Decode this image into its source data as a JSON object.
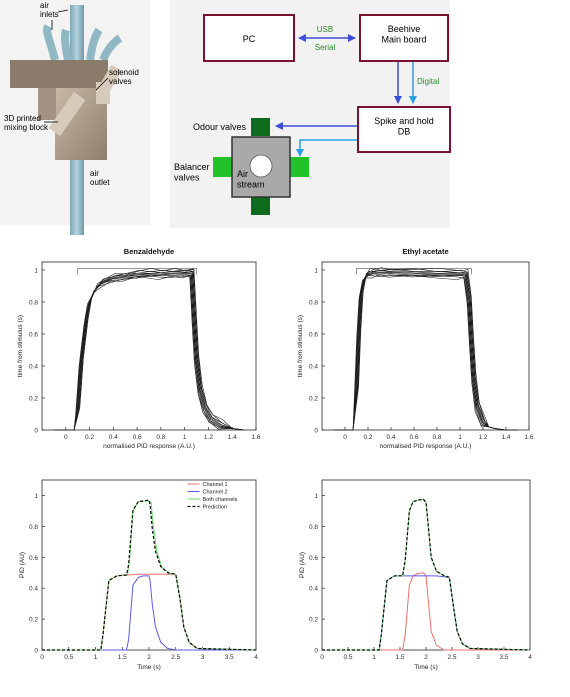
{
  "render3d": {
    "labels": {
      "air_inlets": "air\ninlets",
      "solenoid_valves": "solenoid\nvalves",
      "mixing_block": "3D printed\nmixing block",
      "air_outlet": "air\noutlet"
    }
  },
  "schematic": {
    "pc": "PC",
    "beehive": "Beehive\nMain board",
    "spike": "Spike and hold\nDB",
    "usb": "USB",
    "serial": "Serial",
    "digital": "Digital",
    "odour_valves": "Odour valves",
    "balancer_valves": "Balancer\nvalves",
    "air_stream": "Air\nstream",
    "colors": {
      "box_border": "#7b1330",
      "arrow_dark": "#3b4ed8",
      "arrow_light": "#2aa0e6",
      "label_green": "#2c8a2c",
      "odour_valve": "#0d6b1d",
      "balancer_valve": "#22c32a",
      "plate": "#a9a9a9"
    }
  },
  "chart_data": [
    {
      "type": "line",
      "title": "Benzaldehyde",
      "xlabel": "normalised PID response (A.U.)",
      "ylabel": "time from stimulus (s)",
      "xlim": [
        -0.2,
        1.6
      ],
      "ylim": [
        0,
        1.05
      ],
      "xticks": [
        "0",
        "0.2",
        "0.4",
        "0.6",
        "0.8",
        "1",
        "1.2",
        "1.4",
        "1.6"
      ],
      "yticks": [
        "0",
        "0.2",
        "0.4",
        "0.6",
        "0.8",
        "1"
      ],
      "bracket": {
        "x_start": 0.1,
        "x_end": 1.1,
        "y": 1.01
      },
      "traces": 10,
      "series": [
        {
          "x": [
            -0.1,
            0.07,
            0.1,
            0.13,
            0.17,
            0.2,
            0.25,
            0.3,
            0.4,
            0.5,
            0.6,
            0.7,
            0.8,
            0.9,
            1.0,
            1.06,
            1.08,
            1.1,
            1.13,
            1.17,
            1.22,
            1.3,
            1.4,
            1.5
          ],
          "y": [
            0,
            0,
            0.12,
            0.42,
            0.68,
            0.8,
            0.88,
            0.92,
            0.95,
            0.96,
            0.97,
            0.975,
            0.975,
            0.98,
            0.98,
            0.98,
            0.7,
            0.45,
            0.25,
            0.14,
            0.07,
            0.03,
            0.01,
            0.0
          ]
        }
      ]
    },
    {
      "type": "line",
      "title": "Ethyl acetate",
      "xlabel": "normalised PID response (A.U.)",
      "ylabel": "time from stimulus (s)",
      "xlim": [
        -0.2,
        1.6
      ],
      "ylim": [
        0,
        1.05
      ],
      "xticks": [
        "0",
        "0.2",
        "0.4",
        "0.6",
        "0.8",
        "1",
        "1.2",
        "1.4",
        "1.6"
      ],
      "yticks": [
        "0",
        "0.2",
        "0.4",
        "0.6",
        "0.8",
        "1"
      ],
      "bracket": {
        "x_start": 0.1,
        "x_end": 1.1,
        "y": 1.01
      },
      "traces": 10,
      "series": [
        {
          "x": [
            -0.1,
            0.07,
            0.1,
            0.12,
            0.14,
            0.17,
            0.2,
            0.25,
            0.3,
            0.4,
            0.6,
            0.8,
            1.0,
            1.05,
            1.08,
            1.1,
            1.12,
            1.15,
            1.2,
            1.25,
            1.3,
            1.4,
            1.5
          ],
          "y": [
            0,
            0,
            0.25,
            0.6,
            0.85,
            0.95,
            0.975,
            0.985,
            0.985,
            0.985,
            0.98,
            0.975,
            0.975,
            0.975,
            0.82,
            0.55,
            0.32,
            0.15,
            0.05,
            0.02,
            0.01,
            0.0,
            0.0
          ]
        }
      ]
    },
    {
      "type": "line",
      "title": "",
      "xlabel": "Time (s)",
      "ylabel": "PID (AU)",
      "xlim": [
        0,
        4
      ],
      "ylim": [
        0,
        1.1
      ],
      "xticks": [
        "0",
        "0.5",
        "1",
        "1.5",
        "2",
        "2.5",
        "3",
        "3.5",
        "4"
      ],
      "yticks": [
        "0",
        "0.2",
        "0.4",
        "0.6",
        "0.8",
        "1"
      ],
      "legend": {
        "position": "top-right",
        "entries": [
          "Channel 1",
          "Channel 2",
          "Both channels",
          "Prediction"
        ]
      },
      "series": [
        {
          "name": "Channel 1",
          "color": "#ef6f6f",
          "dash": false,
          "x": [
            0,
            1.1,
            1.14,
            1.25,
            1.4,
            1.6,
            1.8,
            2.0,
            2.2,
            2.4,
            2.5,
            2.58,
            2.65,
            2.75,
            2.9,
            4
          ],
          "y": [
            0,
            0,
            0.1,
            0.45,
            0.48,
            0.485,
            0.49,
            0.49,
            0.49,
            0.49,
            0.49,
            0.33,
            0.15,
            0.05,
            0.01,
            0
          ]
        },
        {
          "name": "Channel 2",
          "color": "#5b5be8",
          "dash": false,
          "x": [
            0,
            1.58,
            1.62,
            1.7,
            1.8,
            1.9,
            2.0,
            2.02,
            2.06,
            2.12,
            2.22,
            2.35,
            2.5,
            4
          ],
          "y": [
            0,
            0,
            0.07,
            0.42,
            0.47,
            0.48,
            0.48,
            0.45,
            0.3,
            0.15,
            0.05,
            0.01,
            0,
            0
          ]
        },
        {
          "name": "Both channels",
          "color": "#67d867",
          "dash": false,
          "x": [
            0,
            1.1,
            1.14,
            1.25,
            1.4,
            1.55,
            1.6,
            1.64,
            1.7,
            1.8,
            2.0,
            2.04,
            2.08,
            2.15,
            2.25,
            2.4,
            2.5,
            2.58,
            2.65,
            2.75,
            2.9,
            4
          ],
          "y": [
            0,
            0,
            0.1,
            0.45,
            0.48,
            0.485,
            0.49,
            0.6,
            0.9,
            0.96,
            0.965,
            0.95,
            0.8,
            0.63,
            0.53,
            0.495,
            0.49,
            0.33,
            0.15,
            0.05,
            0.01,
            0
          ]
        },
        {
          "name": "Prediction",
          "color": "#000000",
          "dash": true,
          "x": [
            0,
            1.1,
            1.14,
            1.25,
            1.4,
            1.58,
            1.62,
            1.7,
            1.8,
            2.0,
            2.02,
            2.06,
            2.12,
            2.22,
            2.35,
            2.5,
            2.58,
            2.65,
            2.75,
            2.9,
            4
          ],
          "y": [
            0,
            0,
            0.1,
            0.45,
            0.48,
            0.485,
            0.555,
            0.905,
            0.96,
            0.97,
            0.94,
            0.79,
            0.64,
            0.54,
            0.5,
            0.49,
            0.33,
            0.15,
            0.05,
            0.01,
            0
          ]
        }
      ]
    },
    {
      "type": "line",
      "title": "",
      "xlabel": "Time (s)",
      "ylabel": "PID (AU)",
      "xlim": [
        0,
        4
      ],
      "ylim": [
        0,
        1.1
      ],
      "xticks": [
        "0",
        "0.5",
        "1",
        "1.5",
        "2",
        "2.5",
        "3",
        "3.5",
        "4"
      ],
      "yticks": [
        "0",
        "0.2",
        "0.4",
        "0.6",
        "0.8",
        "1"
      ],
      "series": [
        {
          "name": "Channel 1",
          "color": "#ef6f6f",
          "dash": false,
          "x": [
            0,
            1.55,
            1.6,
            1.68,
            1.75,
            1.85,
            1.95,
            2.0,
            2.05,
            2.1,
            2.2,
            2.35,
            4
          ],
          "y": [
            0,
            0,
            0.1,
            0.42,
            0.48,
            0.495,
            0.5,
            0.48,
            0.3,
            0.12,
            0.03,
            0,
            0
          ]
        },
        {
          "name": "Channel 2",
          "color": "#5b5be8",
          "dash": false,
          "x": [
            0,
            1.1,
            1.14,
            1.25,
            1.4,
            1.6,
            1.8,
            2.0,
            2.2,
            2.45,
            2.52,
            2.6,
            2.7,
            2.85,
            4
          ],
          "y": [
            0,
            0,
            0.1,
            0.45,
            0.48,
            0.48,
            0.48,
            0.48,
            0.48,
            0.47,
            0.3,
            0.12,
            0.04,
            0.01,
            0
          ]
        },
        {
          "name": "Both channels",
          "color": "#67d867",
          "dash": false,
          "x": [
            0,
            1.1,
            1.14,
            1.25,
            1.4,
            1.55,
            1.6,
            1.68,
            1.75,
            1.85,
            1.95,
            2.0,
            2.05,
            2.1,
            2.2,
            2.35,
            2.45,
            2.52,
            2.6,
            2.7,
            2.85,
            4
          ],
          "y": [
            0,
            0,
            0.1,
            0.45,
            0.48,
            0.48,
            0.58,
            0.9,
            0.96,
            0.97,
            0.975,
            0.955,
            0.78,
            0.6,
            0.51,
            0.48,
            0.47,
            0.3,
            0.12,
            0.04,
            0.01,
            0
          ]
        },
        {
          "name": "Prediction",
          "color": "#000000",
          "dash": true,
          "x": [
            0,
            1.1,
            1.14,
            1.25,
            1.4,
            1.55,
            1.6,
            1.68,
            1.75,
            1.85,
            1.95,
            2.0,
            2.05,
            2.1,
            2.2,
            2.35,
            2.45,
            2.52,
            2.6,
            2.7,
            2.85,
            4
          ],
          "y": [
            0,
            0,
            0.1,
            0.45,
            0.48,
            0.48,
            0.58,
            0.9,
            0.96,
            0.97,
            0.975,
            0.955,
            0.78,
            0.6,
            0.51,
            0.48,
            0.47,
            0.3,
            0.12,
            0.04,
            0.01,
            0
          ]
        }
      ]
    }
  ]
}
